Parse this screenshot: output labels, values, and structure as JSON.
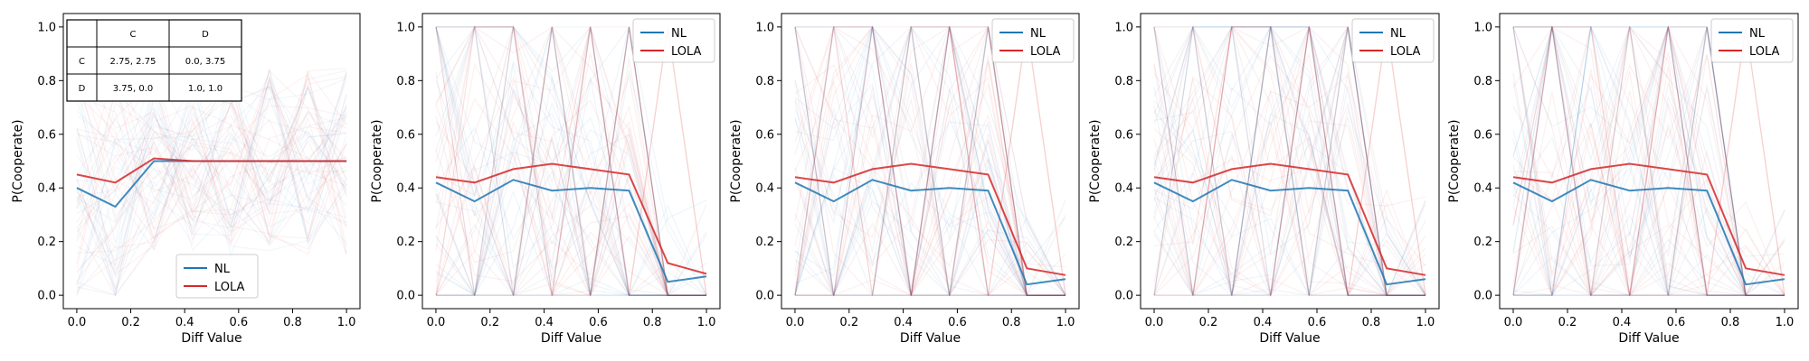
{
  "figure": {
    "palette": {
      "nl": "#1f77b4",
      "lola": "#d62728",
      "axis": "#000000"
    }
  },
  "chart_data": [
    {
      "type": "line",
      "title": "",
      "xlabel": "Diff Value",
      "ylabel": "P(Cooperate)",
      "xlim": [
        -0.05,
        1.05
      ],
      "ylim": [
        -0.05,
        1.05
      ],
      "xticks": [
        "0.0",
        "0.2",
        "0.4",
        "0.6",
        "0.8",
        "1.0"
      ],
      "yticks": [
        "0.0",
        "0.2",
        "0.4",
        "0.6",
        "0.8",
        "1.0"
      ],
      "grid": false,
      "legend": {
        "placement": "lower-center",
        "entries": [
          "NL",
          "LOLA"
        ]
      },
      "payoff_table": {
        "col_headers": [
          "C",
          "D"
        ],
        "rows": [
          {
            "label": "C",
            "cells": [
              "2.75, 2.75",
              "0.0, 3.75"
            ]
          },
          {
            "label": "D",
            "cells": [
              "3.75, 0.0",
              "1.0, 1.0"
            ]
          }
        ]
      },
      "x": [
        0.0,
        0.143,
        0.286,
        0.429,
        0.571,
        0.714,
        0.857,
        1.0
      ],
      "series": [
        {
          "name": "NL",
          "values": [
            0.4,
            0.33,
            0.5,
            0.5,
            0.5,
            0.5,
            0.5,
            0.5
          ]
        },
        {
          "name": "LOLA",
          "values": [
            0.45,
            0.42,
            0.51,
            0.5,
            0.5,
            0.5,
            0.5,
            0.5
          ]
        }
      ]
    },
    {
      "type": "line",
      "title": "",
      "xlabel": "Diff Value",
      "ylabel": "P(Cooperate)",
      "xlim": [
        -0.05,
        1.05
      ],
      "ylim": [
        -0.05,
        1.05
      ],
      "xticks": [
        "0.0",
        "0.2",
        "0.4",
        "0.6",
        "0.8",
        "1.0"
      ],
      "yticks": [
        "0.0",
        "0.2",
        "0.4",
        "0.6",
        "0.8",
        "1.0"
      ],
      "grid": false,
      "legend": {
        "placement": "top-right",
        "entries": [
          "NL",
          "LOLA"
        ]
      },
      "x": [
        0.0,
        0.143,
        0.286,
        0.429,
        0.571,
        0.714,
        0.857,
        1.0
      ],
      "series": [
        {
          "name": "NL",
          "values": [
            0.42,
            0.35,
            0.43,
            0.39,
            0.4,
            0.39,
            0.05,
            0.07
          ]
        },
        {
          "name": "LOLA",
          "values": [
            0.44,
            0.42,
            0.47,
            0.49,
            0.47,
            0.45,
            0.12,
            0.08
          ]
        }
      ]
    },
    {
      "type": "line",
      "title": "",
      "xlabel": "Diff Value",
      "ylabel": "P(Cooperate)",
      "xlim": [
        -0.05,
        1.05
      ],
      "ylim": [
        -0.05,
        1.05
      ],
      "xticks": [
        "0.0",
        "0.2",
        "0.4",
        "0.6",
        "0.8",
        "1.0"
      ],
      "yticks": [
        "0.0",
        "0.2",
        "0.4",
        "0.6",
        "0.8",
        "1.0"
      ],
      "grid": false,
      "legend": {
        "placement": "top-right",
        "entries": [
          "NL",
          "LOLA"
        ]
      },
      "x": [
        0.0,
        0.143,
        0.286,
        0.429,
        0.571,
        0.714,
        0.857,
        1.0
      ],
      "series": [
        {
          "name": "NL",
          "values": [
            0.42,
            0.35,
            0.43,
            0.39,
            0.4,
            0.39,
            0.04,
            0.06
          ]
        },
        {
          "name": "LOLA",
          "values": [
            0.44,
            0.42,
            0.47,
            0.49,
            0.47,
            0.45,
            0.1,
            0.075
          ]
        }
      ]
    },
    {
      "type": "line",
      "title": "",
      "xlabel": "Diff Value",
      "ylabel": "P(Cooperate)",
      "xlim": [
        -0.05,
        1.05
      ],
      "ylim": [
        -0.05,
        1.05
      ],
      "xticks": [
        "0.0",
        "0.2",
        "0.4",
        "0.6",
        "0.8",
        "1.0"
      ],
      "yticks": [
        "0.0",
        "0.2",
        "0.4",
        "0.6",
        "0.8",
        "1.0"
      ],
      "grid": false,
      "legend": {
        "placement": "top-right",
        "entries": [
          "NL",
          "LOLA"
        ]
      },
      "x": [
        0.0,
        0.143,
        0.286,
        0.429,
        0.571,
        0.714,
        0.857,
        1.0
      ],
      "series": [
        {
          "name": "NL",
          "values": [
            0.42,
            0.35,
            0.43,
            0.39,
            0.4,
            0.39,
            0.04,
            0.06
          ]
        },
        {
          "name": "LOLA",
          "values": [
            0.44,
            0.42,
            0.47,
            0.49,
            0.47,
            0.45,
            0.1,
            0.075
          ]
        }
      ]
    },
    {
      "type": "line",
      "title": "",
      "xlabel": "Diff Value",
      "ylabel": "P(Cooperate)",
      "xlim": [
        -0.05,
        1.05
      ],
      "ylim": [
        -0.05,
        1.05
      ],
      "xticks": [
        "0.0",
        "0.2",
        "0.4",
        "0.6",
        "0.8",
        "1.0"
      ],
      "yticks": [
        "0.0",
        "0.2",
        "0.4",
        "0.6",
        "0.8",
        "1.0"
      ],
      "grid": false,
      "legend": {
        "placement": "top-right",
        "entries": [
          "NL",
          "LOLA"
        ]
      },
      "x": [
        0.0,
        0.143,
        0.286,
        0.429,
        0.571,
        0.714,
        0.857,
        1.0
      ],
      "series": [
        {
          "name": "NL",
          "values": [
            0.42,
            0.35,
            0.43,
            0.39,
            0.4,
            0.39,
            0.04,
            0.06
          ]
        },
        {
          "name": "LOLA",
          "values": [
            0.44,
            0.42,
            0.47,
            0.49,
            0.47,
            0.45,
            0.1,
            0.075
          ]
        }
      ]
    }
  ]
}
